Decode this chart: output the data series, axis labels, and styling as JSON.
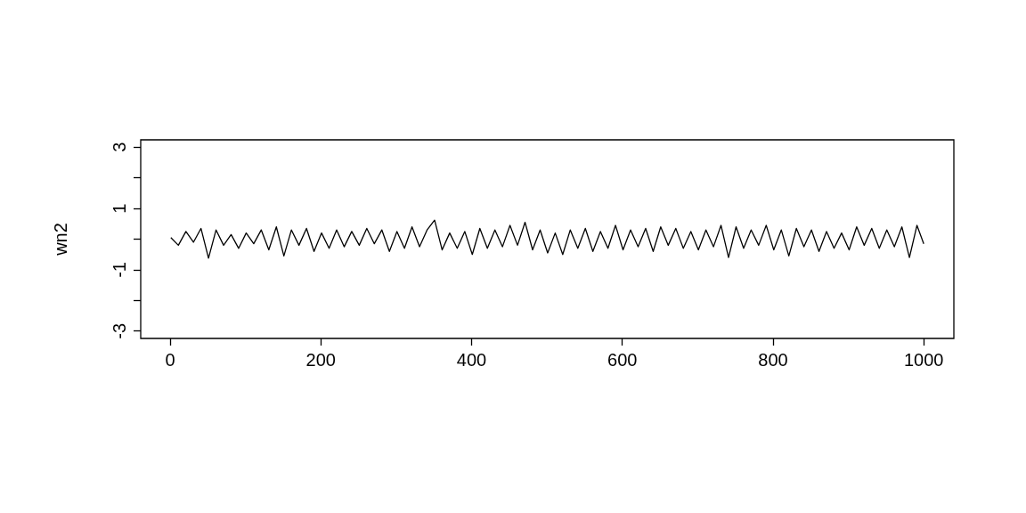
{
  "chart_data": {
    "type": "line",
    "ylabel": "wn2",
    "x": [
      1,
      11,
      21,
      31,
      41,
      51,
      61,
      71,
      81,
      91,
      101,
      111,
      121,
      131,
      141,
      151,
      161,
      171,
      181,
      191,
      201,
      211,
      221,
      231,
      241,
      251,
      261,
      271,
      281,
      291,
      301,
      311,
      321,
      331,
      341,
      351,
      361,
      371,
      381,
      391,
      401,
      411,
      421,
      431,
      441,
      451,
      461,
      471,
      481,
      491,
      501,
      511,
      521,
      531,
      541,
      551,
      561,
      571,
      581,
      591,
      601,
      611,
      621,
      631,
      641,
      651,
      661,
      671,
      681,
      691,
      701,
      711,
      721,
      731,
      741,
      751,
      761,
      771,
      781,
      791,
      801,
      811,
      821,
      831,
      841,
      851,
      861,
      871,
      881,
      891,
      901,
      911,
      921,
      931,
      941,
      951,
      961,
      971,
      981,
      991,
      1000
    ],
    "series": [
      {
        "color": "#000000",
        "values": [
          0.05,
          -0.2,
          0.25,
          -0.1,
          0.35,
          -0.62,
          0.3,
          -0.2,
          0.15,
          -0.3,
          0.2,
          -0.15,
          0.3,
          -0.35,
          0.4,
          -0.55,
          0.3,
          -0.2,
          0.35,
          -0.4,
          0.2,
          -0.3,
          0.3,
          -0.25,
          0.25,
          -0.2,
          0.35,
          -0.15,
          0.3,
          -0.4,
          0.25,
          -0.3,
          0.4,
          -0.25,
          0.3,
          0.62,
          -0.35,
          0.2,
          -0.3,
          0.25,
          -0.5,
          0.35,
          -0.3,
          0.3,
          -0.25,
          0.45,
          -0.2,
          0.55,
          -0.35,
          0.3,
          -0.45,
          0.2,
          -0.5,
          0.3,
          -0.3,
          0.35,
          -0.4,
          0.25,
          -0.3,
          0.45,
          -0.35,
          0.3,
          -0.25,
          0.35,
          -0.4,
          0.4,
          -0.2,
          0.35,
          -0.3,
          0.25,
          -0.35,
          0.3,
          -0.25,
          0.45,
          -0.6,
          0.4,
          -0.3,
          0.3,
          -0.2,
          0.45,
          -0.35,
          0.3,
          -0.55,
          0.35,
          -0.25,
          0.3,
          -0.4,
          0.25,
          -0.3,
          0.2,
          -0.35,
          0.4,
          -0.2,
          0.35,
          -0.3,
          0.3,
          -0.25,
          0.4,
          -0.6,
          0.45,
          -0.15
        ]
      }
    ],
    "xlim": [
      -38.96,
      1039.96
    ],
    "xticks": [
      0,
      200,
      400,
      600,
      800,
      1000
    ],
    "ylim": [
      -3.24,
      3.24
    ],
    "yticks": [
      -3,
      {
        "value": -2,
        "label": null
      },
      -1,
      {
        "value": 0,
        "label": null
      },
      1,
      {
        "value": 2,
        "label": null
      },
      3
    ],
    "grid": false,
    "marker": "none",
    "line_style": "solid"
  }
}
